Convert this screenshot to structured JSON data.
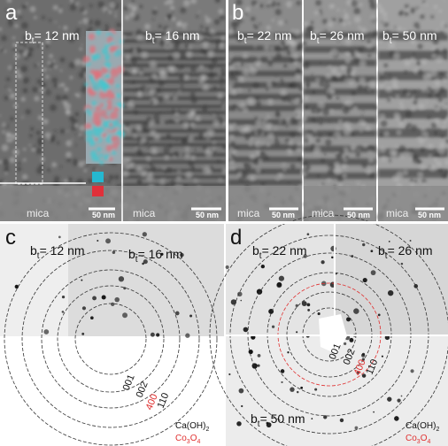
{
  "panels": [
    {
      "label": "a",
      "images": [
        {
          "thickness": {
            "symbol": "b",
            "sub": "t",
            "text": "= 12 nm"
          },
          "substrate": "mica",
          "scale_bar": "50 nm"
        },
        {
          "thickness": {
            "symbol": "b",
            "sub": "t",
            "text": "= 16 nm"
          },
          "substrate": "mica",
          "scale_bar": "50 nm"
        }
      ]
    },
    {
      "label": "b",
      "images": [
        {
          "thickness": {
            "symbol": "b",
            "sub": "t",
            "text": "= 22 nm"
          },
          "substrate": "mica",
          "scale_bar": "50 nm"
        },
        {
          "thickness": {
            "symbol": "b",
            "sub": "t",
            "text": "= 26 nm"
          },
          "substrate": "mica",
          "scale_bar": "50 nm"
        },
        {
          "thickness": {
            "symbol": "b",
            "sub": "t",
            "text": "= 50 nm"
          },
          "substrate": "mica",
          "scale_bar": "50 nm"
        }
      ]
    },
    {
      "label": "c",
      "images": [
        {
          "thickness": {
            "symbol": "b",
            "sub": "t",
            "text": "= 12 nm"
          }
        },
        {
          "thickness": {
            "symbol": "b",
            "sub": "t",
            "text": "= 16 nm"
          }
        }
      ],
      "rings": [
        "001",
        "002",
        "400",
        "110"
      ],
      "legend": [
        {
          "main": "Ca(OH)",
          "sub": "2",
          "rest": ""
        },
        {
          "main": "Co",
          "sub": "3",
          "rest": "O",
          "sub2": "4"
        }
      ]
    },
    {
      "label": "d",
      "images": [
        {
          "thickness": {
            "symbol": "b",
            "sub": "t",
            "text": "= 22 nm"
          }
        },
        {
          "thickness": {
            "symbol": "b",
            "sub": "t",
            "text": "= 26 nm"
          }
        },
        {
          "thickness": {
            "symbol": "b",
            "sub": "t",
            "text": "= 50 nm"
          }
        }
      ],
      "rings": [
        "001",
        "002",
        "400",
        "110"
      ],
      "legend": [
        {
          "main": "Ca(OH)",
          "sub": "2",
          "rest": ""
        },
        {
          "main": "Co",
          "sub": "3",
          "rest": "O",
          "sub2": "4"
        }
      ]
    }
  ]
}
